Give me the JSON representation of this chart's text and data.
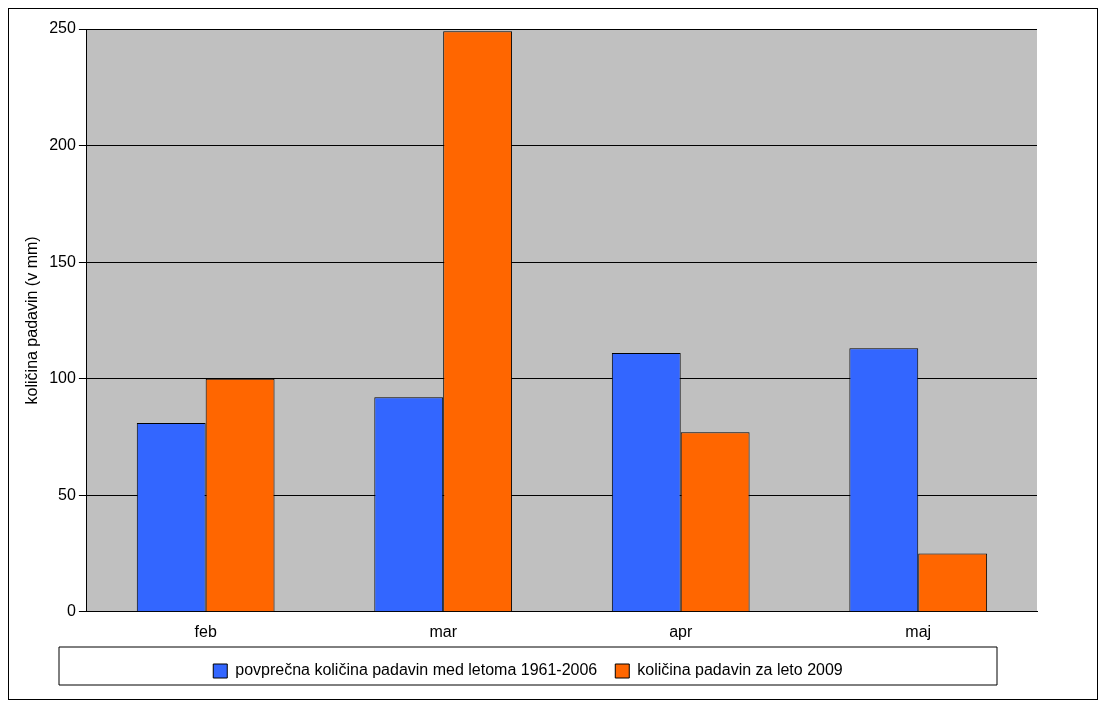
{
  "chart_data": {
    "type": "bar",
    "ylabel": "količina padavin (v mm)",
    "categories": [
      "feb",
      "mar",
      "apr",
      "maj"
    ],
    "series": [
      {
        "name": "povprečna količina padavin med letoma 1961-2006",
        "color": "#3366ff",
        "values": [
          81,
          92,
          111,
          113
        ]
      },
      {
        "name": "količina padavin za leto 2009",
        "color": "#ff6600",
        "values": [
          100,
          249,
          77,
          25
        ]
      }
    ],
    "ylim": [
      0,
      250
    ],
    "yticks": [
      0,
      50,
      100,
      150,
      200,
      250
    ],
    "grid": "y",
    "legend": "bottom"
  }
}
